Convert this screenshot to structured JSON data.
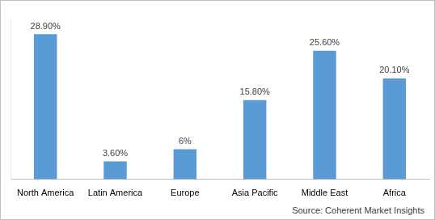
{
  "chart_data": {
    "type": "bar",
    "categories": [
      "North America",
      "Latin America",
      "Europe",
      "Asia Pacific",
      "Middle East",
      "Africa"
    ],
    "values": [
      28.9,
      3.6,
      6,
      15.8,
      25.6,
      20.1
    ],
    "value_labels": [
      "28.90%",
      "3.60%",
      "6%",
      "15.80%",
      "25.60%",
      "20.10%"
    ],
    "color": "#5b9bd5",
    "ylim": [
      0,
      32
    ],
    "yticks": [],
    "grid": false,
    "data_labels": true,
    "tick_labels": "x",
    "source": "Source: Coherent Market Insights"
  }
}
